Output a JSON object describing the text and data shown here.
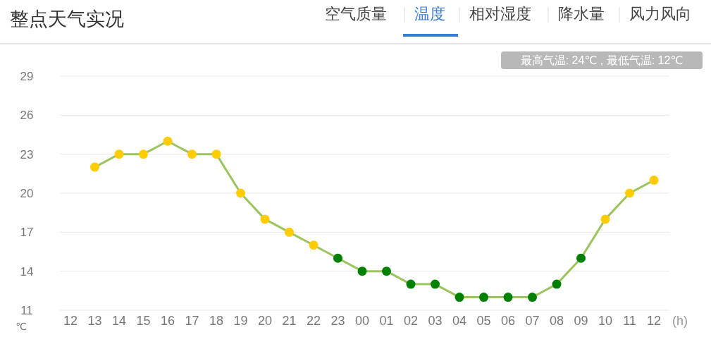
{
  "chart_data": {
    "type": "line",
    "title": "整点天气实况",
    "annotations": [
      "空气质量",
      "温度",
      "相对湿度",
      "降水量",
      "风力风向",
      "最高气温: 24℃ , 最低气温: 12℃"
    ],
    "xlabel": "(h)",
    "ylabel": "℃",
    "categories": [
      "12",
      "13",
      "14",
      "15",
      "16",
      "17",
      "18",
      "19",
      "20",
      "21",
      "22",
      "23",
      "00",
      "01",
      "02",
      "03",
      "04",
      "05",
      "06",
      "07",
      "08",
      "09",
      "10",
      "11",
      "12"
    ],
    "series": [
      {
        "color": "#9bc45c",
        "values": [
          null,
          22,
          23,
          23,
          24,
          23,
          23,
          20,
          18,
          17,
          16,
          15,
          14,
          14,
          13,
          13,
          12,
          12,
          12,
          12,
          13,
          15,
          18,
          20,
          21
        ],
        "colors": [
          "#ffcc00",
          "#ffcc00",
          "#ffcc00",
          "#ffcc00",
          "#ffcc00",
          "#ffcc00",
          "#ffcc00",
          "#ffcc00",
          "#ffcc00",
          "#ffcc00",
          "#ffcc00",
          "#008000",
          "#008000",
          "#008000",
          "#008000",
          "#008000",
          "#008000",
          "#008000",
          "#008000",
          "#008000",
          "#008000",
          "#008000",
          "#ffcc00",
          "#ffcc00",
          "#ffcc00"
        ]
      }
    ],
    "ylim": [
      11,
      29
    ],
    "yticks": [
      11,
      14,
      17,
      20,
      23,
      26,
      29
    ],
    "grid": "y",
    "marker": "circle",
    "line_style": "solid"
  }
}
